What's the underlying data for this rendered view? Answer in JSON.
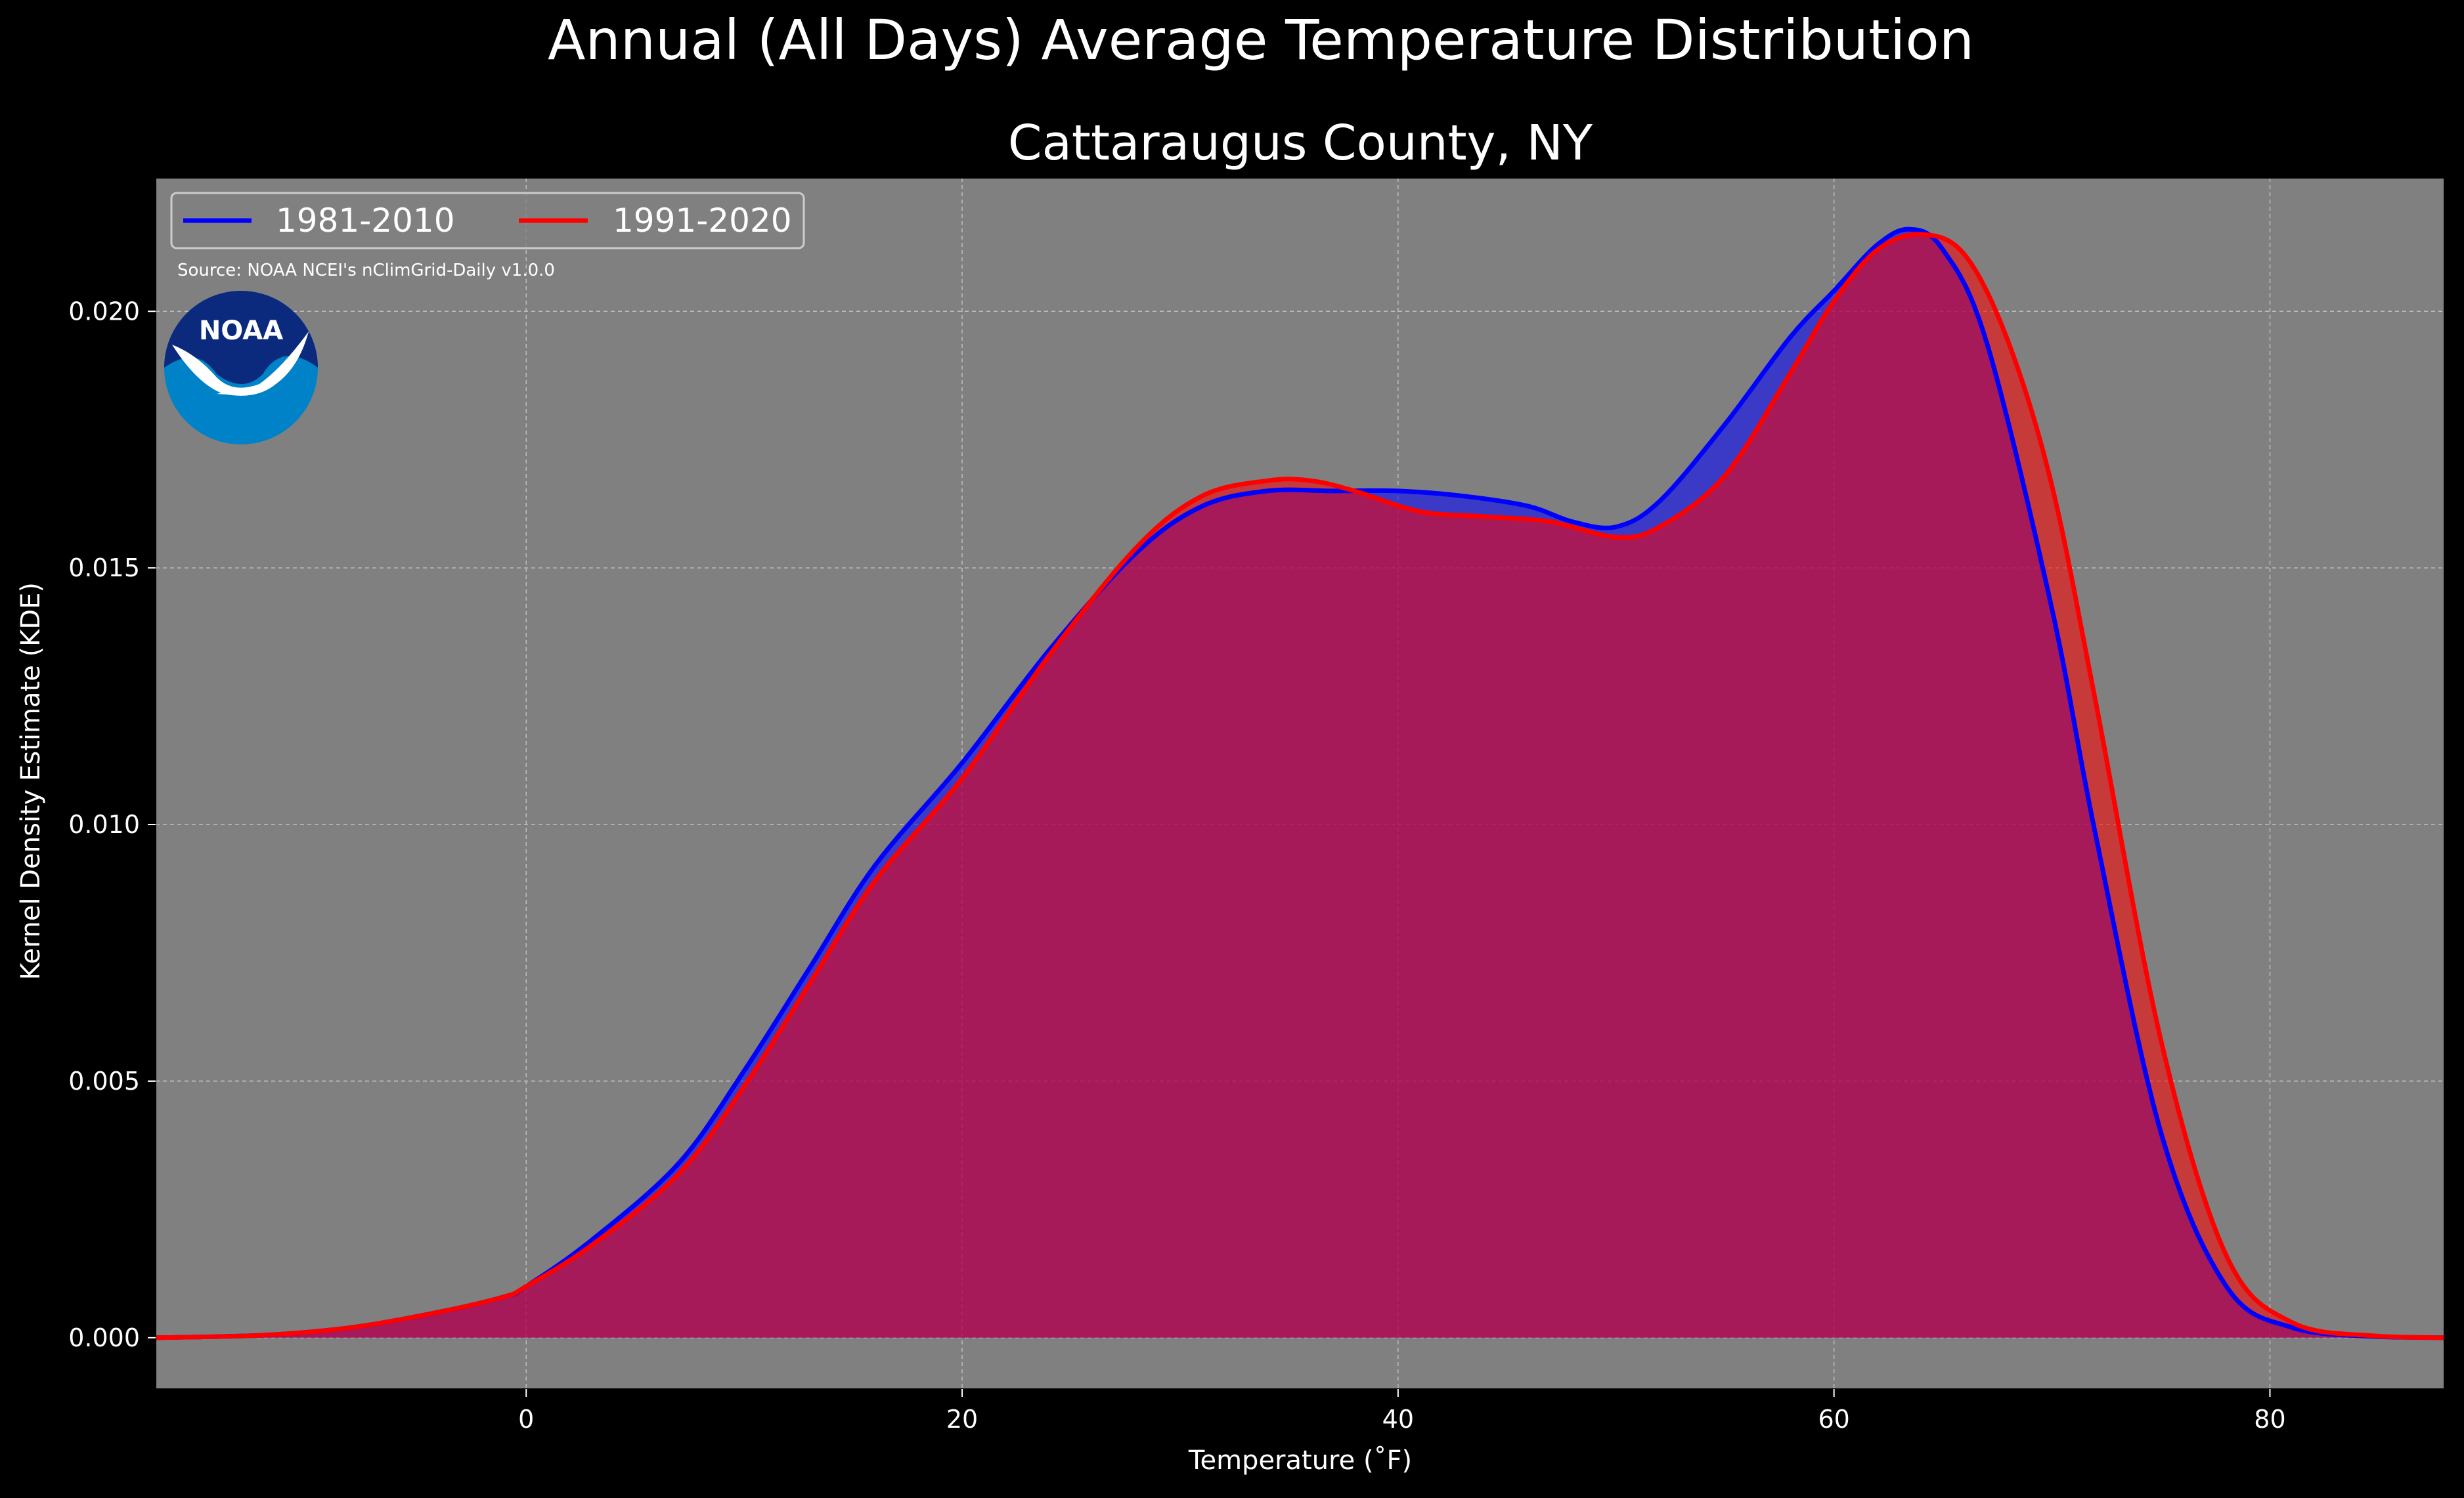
{
  "figure": {
    "title": "Annual (All Days) Average Temperature Distribution",
    "subtitle": "Cattaraugus County, NY",
    "source": "Source: NOAA NCEI's nClimGrid-Daily v1.0.0",
    "logo_text": "NOAA"
  },
  "colors": {
    "figure_bg": "#000000",
    "axes_bg": "#808080",
    "series_1981": "#0000ff",
    "series_1991": "#ff0000",
    "overlap_fill": "#9e1f5c"
  },
  "chart_data": {
    "type": "area",
    "xlabel": "Temperature ($^\\circ$F)",
    "xlabel_display": "Temperature (˚F)",
    "ylabel": "Kernel Density Estimate (KDE)",
    "xlim": [
      -17,
      88
    ],
    "ylim": [
      -0.001,
      0.0226
    ],
    "grid": true,
    "legend_placement": "top-left",
    "x_ticks": [
      0,
      20,
      40,
      60,
      80
    ],
    "x_tick_labels": [
      "0",
      "20",
      "40",
      "60",
      "80"
    ],
    "y_ticks": [
      0.0,
      0.005,
      0.01,
      0.015,
      0.02
    ],
    "y_tick_labels": [
      "0.000",
      "0.005",
      "0.010",
      "0.015",
      "0.020"
    ],
    "series": [
      {
        "name": "1981-2010",
        "color": "#0000ff",
        "x": [
          -17,
          -12,
          -8,
          -4,
          -1,
          0,
          3,
          7,
          10,
          13,
          16,
          20,
          24,
          28,
          31,
          34,
          37,
          40,
          43,
          46,
          48,
          50,
          52,
          55,
          58,
          60,
          62,
          63.5,
          65,
          67,
          70,
          72,
          75,
          78,
          81,
          85,
          88
        ],
        "y": [
          0.0,
          5e-05,
          0.0002,
          0.0005,
          0.0008,
          0.001,
          0.0019,
          0.0034,
          0.0052,
          0.0072,
          0.0092,
          0.0112,
          0.0134,
          0.0153,
          0.0162,
          0.0165,
          0.0165,
          0.0165,
          0.0164,
          0.0162,
          0.0159,
          0.0158,
          0.0163,
          0.0178,
          0.0195,
          0.0204,
          0.0213,
          0.0216,
          0.0212,
          0.0194,
          0.0142,
          0.0098,
          0.004,
          0.001,
          0.0002,
          2e-05,
          0.0
        ]
      },
      {
        "name": "1991-2020",
        "color": "#ff0000",
        "x": [
          -17,
          -12,
          -8,
          -4,
          -1,
          0,
          3,
          7,
          10,
          13,
          16,
          20,
          24,
          28,
          31,
          34,
          36,
          38,
          41,
          44,
          47,
          50,
          52,
          55,
          58,
          60,
          62,
          64,
          66,
          68,
          70,
          72,
          75,
          78,
          81,
          85,
          88
        ],
        "y": [
          0.0,
          5e-05,
          0.0002,
          0.0005,
          0.0008,
          0.001,
          0.0018,
          0.0032,
          0.0049,
          0.0069,
          0.0089,
          0.0109,
          0.0133,
          0.0154,
          0.0164,
          0.0167,
          0.0167,
          0.0165,
          0.0161,
          0.016,
          0.0159,
          0.0156,
          0.0158,
          0.0168,
          0.0188,
          0.0202,
          0.0212,
          0.0215,
          0.0211,
          0.0194,
          0.0166,
          0.0124,
          0.0058,
          0.0016,
          0.0003,
          3e-05,
          0.0
        ]
      }
    ]
  }
}
